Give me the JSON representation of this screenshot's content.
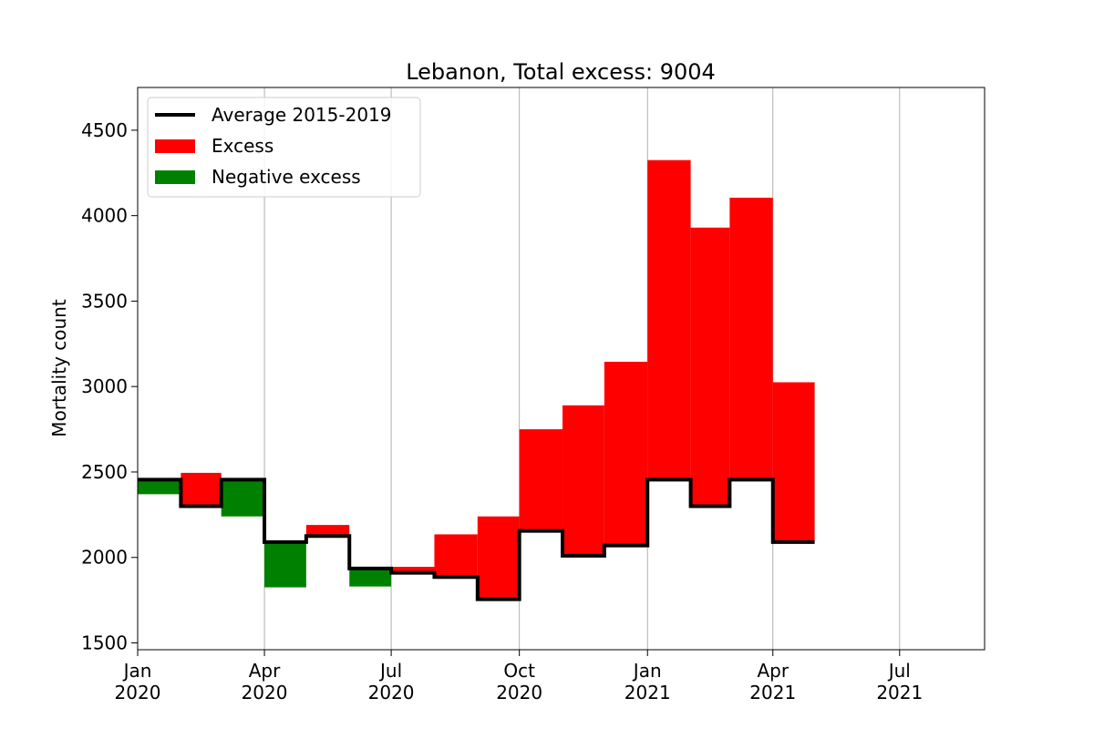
{
  "chart_data": {
    "type": "bar",
    "title": "Lebanon, Total excess: 9004",
    "xlabel": "",
    "ylabel": "Mortality count",
    "ylim": [
      1460,
      4750
    ],
    "xlim": [
      "2020-01-01",
      "2021-08-31"
    ],
    "grid": "x",
    "legend_position": "top-left",
    "legend": [
      {
        "label": "Average 2015-2019",
        "kind": "line",
        "color": "#000000"
      },
      {
        "label": "Excess",
        "kind": "patch",
        "color": "#ff0000"
      },
      {
        "label": "Negative excess",
        "kind": "patch",
        "color": "#008000"
      }
    ],
    "y_ticks": [
      1500,
      2000,
      2500,
      3000,
      3500,
      4000,
      4500
    ],
    "x_ticks": [
      {
        "date": "2020-01-01",
        "month": "Jan",
        "year": "2020"
      },
      {
        "date": "2020-04-01",
        "month": "Apr",
        "year": "2020"
      },
      {
        "date": "2020-07-01",
        "month": "Jul",
        "year": "2020"
      },
      {
        "date": "2020-10-01",
        "month": "Oct",
        "year": "2020"
      },
      {
        "date": "2021-01-01",
        "month": "Jan",
        "year": "2021"
      },
      {
        "date": "2021-04-01",
        "month": "Apr",
        "year": "2021"
      },
      {
        "date": "2021-07-01",
        "month": "Jul",
        "year": "2021"
      }
    ],
    "months": [
      {
        "start": "2020-01-01",
        "end": "2020-02-01",
        "average": 2455,
        "actual": 2370
      },
      {
        "start": "2020-02-01",
        "end": "2020-03-01",
        "average": 2300,
        "actual": 2495
      },
      {
        "start": "2020-03-01",
        "end": "2020-04-01",
        "average": 2455,
        "actual": 2240
      },
      {
        "start": "2020-04-01",
        "end": "2020-05-01",
        "average": 2090,
        "actual": 1825
      },
      {
        "start": "2020-05-01",
        "end": "2020-06-01",
        "average": 2125,
        "actual": 2190
      },
      {
        "start": "2020-06-01",
        "end": "2020-07-01",
        "average": 1935,
        "actual": 1830
      },
      {
        "start": "2020-07-01",
        "end": "2020-08-01",
        "average": 1910,
        "actual": 1945
      },
      {
        "start": "2020-08-01",
        "end": "2020-09-01",
        "average": 1885,
        "actual": 2135
      },
      {
        "start": "2020-09-01",
        "end": "2020-10-01",
        "average": 1755,
        "actual": 2240
      },
      {
        "start": "2020-10-01",
        "end": "2020-11-01",
        "average": 2155,
        "actual": 2750
      },
      {
        "start": "2020-11-01",
        "end": "2020-12-01",
        "average": 2010,
        "actual": 2890
      },
      {
        "start": "2020-12-01",
        "end": "2021-01-01",
        "average": 2070,
        "actual": 3145
      },
      {
        "start": "2021-01-01",
        "end": "2021-02-01",
        "average": 2455,
        "actual": 4325
      },
      {
        "start": "2021-02-01",
        "end": "2021-03-01",
        "average": 2300,
        "actual": 3930
      },
      {
        "start": "2021-03-01",
        "end": "2021-04-01",
        "average": 2455,
        "actual": 4105
      },
      {
        "start": "2021-04-01",
        "end": "2021-05-01",
        "average": 2090,
        "actual": 3025
      }
    ]
  }
}
